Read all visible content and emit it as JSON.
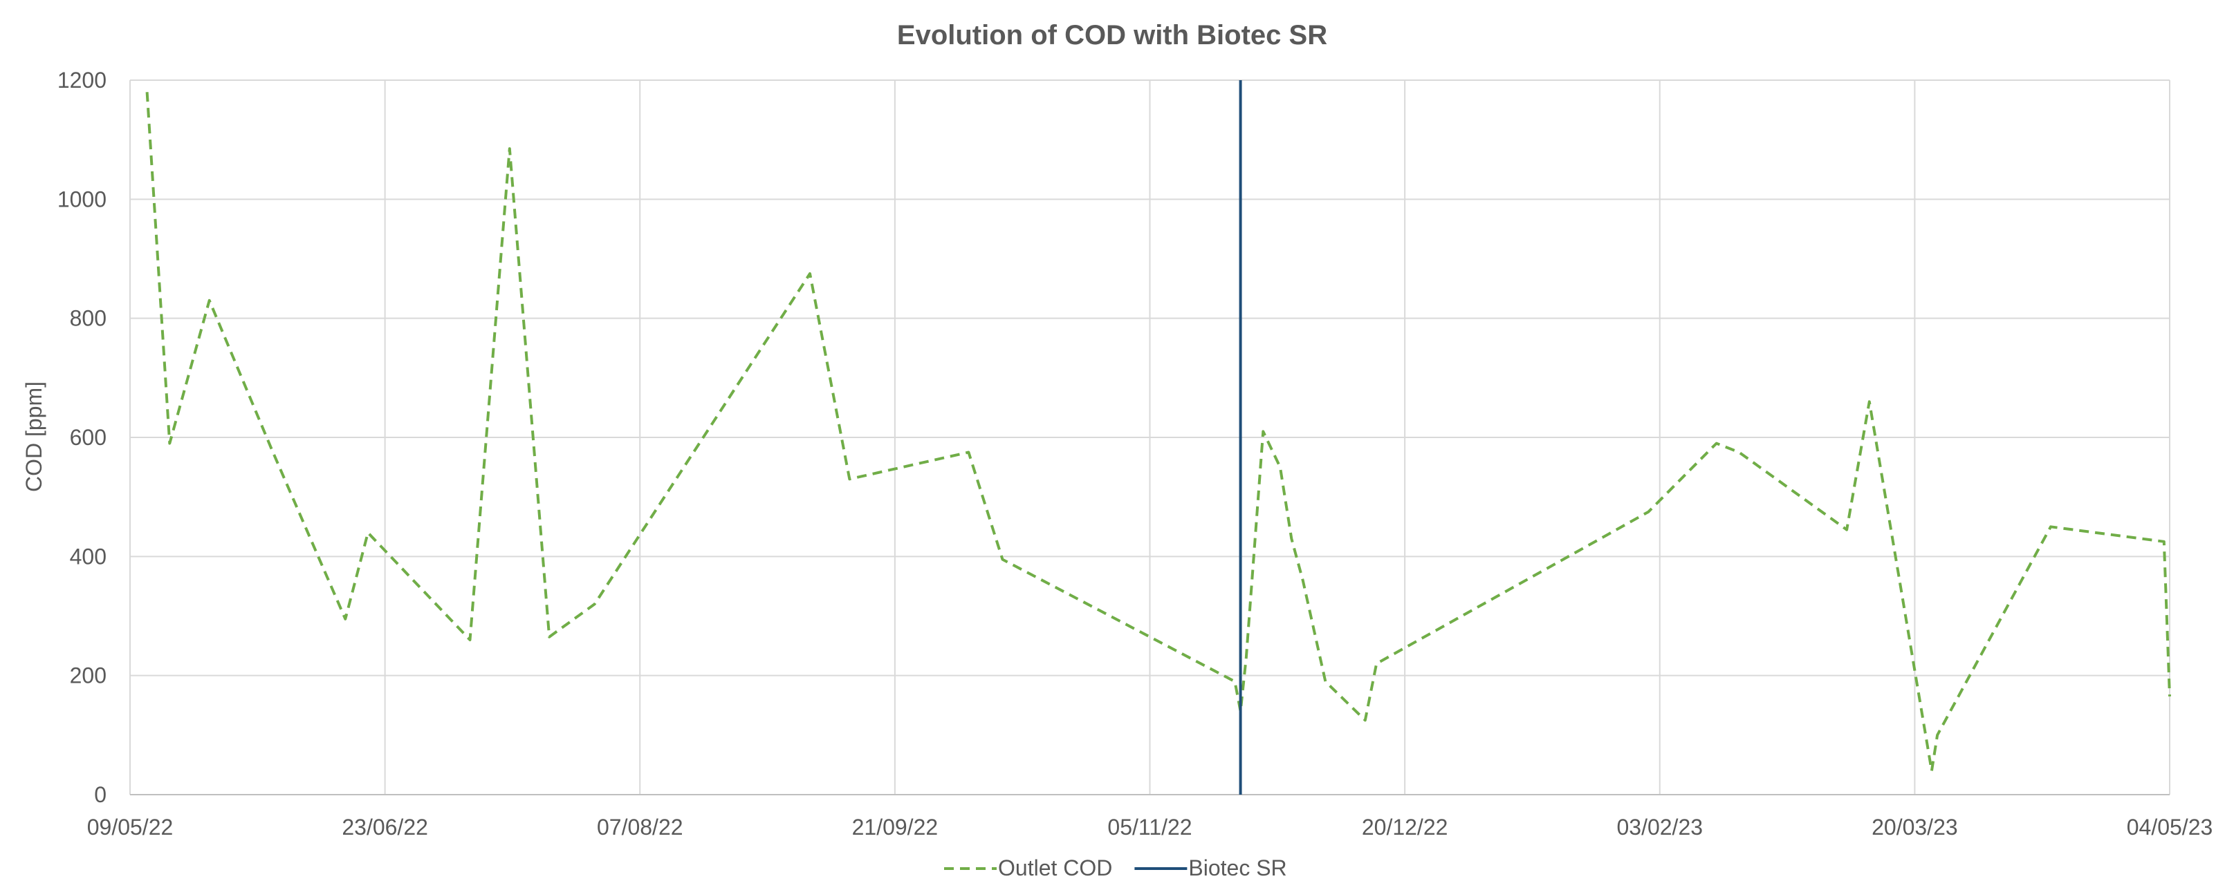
{
  "chart_data": {
    "type": "line",
    "title": "Evolution of COD with Biotec SR",
    "xlabel": "",
    "ylabel": "COD [ppm]",
    "ylim": [
      0,
      1200
    ],
    "yticks": [
      0,
      200,
      400,
      600,
      800,
      1000,
      1200
    ],
    "xlim": [
      "2022-05-09",
      "2023-05-04"
    ],
    "xticks": [
      {
        "date": "2022-05-09",
        "label": "09/05/22"
      },
      {
        "date": "2022-06-23",
        "label": "23/06/22"
      },
      {
        "date": "2022-08-07",
        "label": "07/08/22"
      },
      {
        "date": "2022-09-21",
        "label": "21/09/22"
      },
      {
        "date": "2022-11-05",
        "label": "05/11/22"
      },
      {
        "date": "2022-12-20",
        "label": "20/12/22"
      },
      {
        "date": "2023-02-03",
        "label": "03/02/23"
      },
      {
        "date": "2023-03-20",
        "label": "20/03/23"
      },
      {
        "date": "2023-05-04",
        "label": "04/05/23"
      }
    ],
    "grid": true,
    "legend_position": "bottom",
    "series": [
      {
        "name": "Outlet COD",
        "color": "#70AD47",
        "style": "dashed",
        "points": [
          {
            "x": "2022-05-12",
            "y": 1180
          },
          {
            "x": "2022-05-16",
            "y": 590
          },
          {
            "x": "2022-05-23",
            "y": 830
          },
          {
            "x": "2022-06-03",
            "y": 580
          },
          {
            "x": "2022-06-16",
            "y": 295
          },
          {
            "x": "2022-06-20",
            "y": 440
          },
          {
            "x": "2022-07-08",
            "y": 260
          },
          {
            "x": "2022-07-15",
            "y": 1085
          },
          {
            "x": "2022-07-22",
            "y": 265
          },
          {
            "x": "2022-07-30",
            "y": 320
          },
          {
            "x": "2022-09-06",
            "y": 875
          },
          {
            "x": "2022-09-13",
            "y": 530
          },
          {
            "x": "2022-10-04",
            "y": 575
          },
          {
            "x": "2022-10-10",
            "y": 395
          },
          {
            "x": "2022-11-20",
            "y": 190
          },
          {
            "x": "2022-11-21",
            "y": 140
          },
          {
            "x": "2022-11-22",
            "y": 230
          },
          {
            "x": "2022-11-25",
            "y": 610
          },
          {
            "x": "2022-11-28",
            "y": 550
          },
          {
            "x": "2022-11-30",
            "y": 430
          },
          {
            "x": "2022-12-02",
            "y": 360
          },
          {
            "x": "2022-12-06",
            "y": 190
          },
          {
            "x": "2022-12-13",
            "y": 125
          },
          {
            "x": "2022-12-15",
            "y": 220
          },
          {
            "x": "2023-02-01",
            "y": 475
          },
          {
            "x": "2023-02-13",
            "y": 590
          },
          {
            "x": "2023-02-17",
            "y": 575
          },
          {
            "x": "2023-03-08",
            "y": 445
          },
          {
            "x": "2023-03-12",
            "y": 660
          },
          {
            "x": "2023-03-23",
            "y": 40
          },
          {
            "x": "2023-03-24",
            "y": 100
          },
          {
            "x": "2023-04-13",
            "y": 450
          },
          {
            "x": "2023-05-03",
            "y": 425
          },
          {
            "x": "2023-05-04",
            "y": 165
          }
        ]
      },
      {
        "name": "Biotec SR",
        "color": "#1F4E79",
        "style": "solid",
        "vertical_at": "2022-11-21"
      }
    ]
  }
}
